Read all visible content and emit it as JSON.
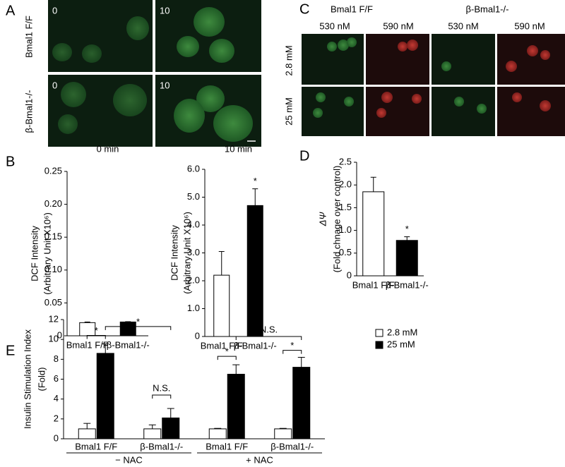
{
  "panel_labels": [
    "A",
    "B",
    "C",
    "D",
    "E"
  ],
  "panel_a": {
    "row_labels": [
      "Bmal1 F/F",
      "β-Bmal1-/-"
    ],
    "time_labels": [
      "0",
      "10",
      "0",
      "10"
    ]
  },
  "panel_c": {
    "group_labels": [
      "Bmal1 F/F",
      "β-Bmal1-/-"
    ],
    "column_labels": [
      "530 nM",
      "590 nM",
      "530 nM",
      "590 nM"
    ],
    "row_labels": [
      "2.8 mM",
      "25 mM"
    ]
  },
  "chart_data": [
    {
      "type": "bar",
      "title": "0 min",
      "ylabel": [
        "DCF Intensity",
        "(Arbitrary Unit X10⁶)"
      ],
      "categories": [
        "Bmal1 F/F",
        "β-Bmal1-/-"
      ],
      "values": [
        0.02,
        0.021
      ],
      "errors": [
        0.001,
        0.0005
      ],
      "bar_colors": [
        "#ffffff",
        "#000000"
      ],
      "ylim": [
        0,
        0.25
      ],
      "yticks": [
        0,
        0.05,
        {
          "value": 0.1,
          "label": "0.10"
        },
        0.15,
        {
          "value": 0.2,
          "label": "0.20"
        },
        0.25
      ]
    },
    {
      "type": "bar",
      "title": "10 min",
      "ylabel": [
        "DCF Intensity",
        "(Arbitrary Unit X10⁶)"
      ],
      "categories": [
        "Bmal1 F/F",
        "β-Bmal1-/-"
      ],
      "values": [
        2.2,
        4.7
      ],
      "errors": [
        0.85,
        0.6
      ],
      "bar_colors": [
        "#ffffff",
        "#000000"
      ],
      "annotation": "*",
      "ylim": [
        0,
        6
      ],
      "yticks": [
        0,
        {
          "value": 1,
          "label": "1.0"
        },
        {
          "value": 2,
          "label": "2.0"
        },
        {
          "value": 3,
          "label": "3.0"
        },
        {
          "value": 4,
          "label": "4.0"
        },
        {
          "value": 5,
          "label": "5.0"
        },
        {
          "value": 6,
          "label": "6.0"
        }
      ]
    },
    {
      "type": "bar",
      "ylabel": [
        "ΔΨ",
        "(Fold chnage over control)"
      ],
      "categories": [
        "Bmal1 F/F",
        "β-Bmal1-/-"
      ],
      "values": [
        1.85,
        0.78
      ],
      "errors": [
        0.32,
        0.08
      ],
      "bar_colors": [
        "#ffffff",
        "#000000"
      ],
      "annotation": "*",
      "ylim": [
        0,
        2.5
      ],
      "yticks": [
        0,
        0.5,
        {
          "value": 1,
          "label": "1.0"
        },
        1.5,
        {
          "value": 2,
          "label": "2.0"
        },
        2.5
      ]
    },
    {
      "type": "grouped_bar",
      "ylabel": [
        "Insulin Stimulation Index",
        "(Fold)"
      ],
      "categories": [
        "Bmal1  F/F",
        "β-Bmal1-/-",
        "Bmal1 F/F",
        "β-Bmal1-/-"
      ],
      "groups": [
        "− NAC",
        "+ NAC"
      ],
      "series": [
        {
          "name": "2.8 mM",
          "color": "#ffffff",
          "values": [
            1,
            1,
            1,
            1
          ],
          "errors": [
            0.55,
            0.4,
            0.05,
            0.05
          ]
        },
        {
          "name": "25 mM",
          "color": "#000000",
          "values": [
            8.6,
            2.1,
            6.5,
            7.2
          ],
          "errors": [
            0.95,
            0.95,
            0.95,
            1.0
          ]
        }
      ],
      "annotations": [
        "*",
        "*",
        "N.S.",
        "*",
        "N.S.",
        "*"
      ],
      "ylim": [
        0,
        12
      ],
      "yticks": [
        0,
        2,
        4,
        6,
        8,
        10,
        12
      ]
    }
  ]
}
